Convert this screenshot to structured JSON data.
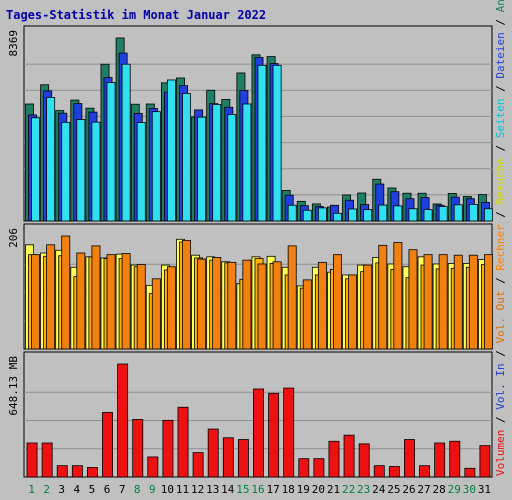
{
  "chart_data": {
    "type": "bar",
    "title": "Tages-Statistik im Monat Januar 2022",
    "categories": [
      "1",
      "2",
      "3",
      "4",
      "5",
      "6",
      "7",
      "8",
      "9",
      "10",
      "11",
      "12",
      "13",
      "14",
      "15",
      "16",
      "17",
      "18",
      "19",
      "20",
      "21",
      "22",
      "23",
      "24",
      "25",
      "26",
      "27",
      "28",
      "29",
      "30",
      "31"
    ],
    "weekend_days": [
      "1",
      "2",
      "8",
      "9",
      "15",
      "16",
      "22",
      "23",
      "29",
      "30"
    ],
    "panels": [
      {
        "id": "requests",
        "ymax_label": "8369",
        "ymax": 8369,
        "series": [
          {
            "name": "Anfragen",
            "color": "#1f7f66",
            "values": [
              5350,
              6230,
              5050,
              5530,
              5160,
              7170,
              8369,
              5340,
              5350,
              6320,
              6540,
              4760,
              5980,
              5560,
              6770,
              7600,
              7520,
              1400,
              900,
              780,
              640,
              1190,
              1280,
              1910,
              1510,
              1270,
              1270,
              780,
              1260,
              1120,
              1210
            ]
          },
          {
            "name": "Dateien",
            "color": "#1f3fe0",
            "values": [
              4850,
              5950,
              4930,
              5370,
              4980,
              6560,
              7680,
              4920,
              5150,
              5890,
              6190,
              5080,
              5370,
              5200,
              5970,
              7480,
              7200,
              1180,
              700,
              660,
              720,
              950,
              750,
              1690,
              1340,
              1020,
              1070,
              720,
              1090,
              1020,
              850
            ]
          },
          {
            "name": "Seiten",
            "color": "#2fe0f0",
            "values": [
              4720,
              5650,
              4510,
              4640,
              4520,
              6330,
              7170,
              4500,
              5000,
              6450,
              5830,
              4750,
              5330,
              4870,
              5350,
              7120,
              7120,
              720,
              490,
              600,
              350,
              550,
              520,
              730,
              690,
              560,
              520,
              660,
              740,
              760,
              560
            ]
          }
        ]
      },
      {
        "id": "visits",
        "ymax_label": "206",
        "ymax": 206,
        "series": [
          {
            "name": "Besuche",
            "color": "#ffff55",
            "values": [
              190,
              175,
              180,
              149,
              168,
              166,
              173,
              153,
              116,
              153,
              200,
              171,
              168,
              159,
              119,
              168,
              169,
              149,
              115,
              149,
              140,
              135,
              153,
              167,
              155,
              150,
              168,
              155,
              156,
              156,
              163
            ]
          },
          {
            "name": "Rechner",
            "color": "#ffb000",
            "values": [
              172,
              169,
              170,
              132,
              168,
              165,
              165,
              150,
              101,
              144,
              195,
              166,
              162,
              157,
              127,
              165,
              156,
              135,
              111,
              135,
              145,
              128,
              141,
              157,
              145,
              130,
              153,
              146,
              147,
              149,
              154
            ]
          },
          {
            "name": "Vol. Out",
            "color": "#f08010",
            "values": [
              172,
              190,
              206,
              175,
              188,
              172,
              174,
              154,
              128,
              150,
              198,
              164,
              167,
              158,
              162,
              155,
              159,
              188,
              126,
              158,
              172,
              135,
              153,
              189,
              194,
              181,
              172,
              172,
              171,
              171,
              172
            ]
          }
        ]
      },
      {
        "id": "volume",
        "ymax_label": "648.13 MB",
        "ymax": 648.13,
        "series": [
          {
            "name": "Volumen",
            "color": "#ee1111",
            "values": [
              195,
              195,
              65,
              65,
              55,
              370,
              648,
              330,
              115,
              325,
              400,
              140,
              275,
              225,
              215,
              505,
              480,
              510,
              105,
              105,
              205,
              240,
              190,
              65,
              60,
              215,
              65,
              195,
              205,
              50,
              180
            ]
          },
          {
            "name": "Vol. In",
            "color": "#2040d0",
            "values": []
          }
        ]
      }
    ],
    "legend_right": [
      {
        "text": "Anfragen",
        "color": "#1f7f66"
      },
      {
        "text": "Dateien",
        "color": "#1f3fe0"
      },
      {
        "text": "Seiten",
        "color": "#00c8d8"
      },
      {
        "text": "Besuche",
        "color": "#d8d800"
      },
      {
        "text": "Rechner",
        "color": "#ff8000"
      },
      {
        "text": "Vol. Out",
        "color": "#e07000"
      },
      {
        "text": "Vol. In",
        "color": "#2040d0"
      },
      {
        "text": "Volumen",
        "color": "#ee1111"
      }
    ],
    "legend_separator": " / ",
    "colors": {
      "background": "#c0c0c0",
      "title": "#0000aa",
      "weekday_label": "#000000",
      "weekend_label": "#00803f",
      "gridline": "#909090",
      "axis_label": "#000000"
    }
  }
}
